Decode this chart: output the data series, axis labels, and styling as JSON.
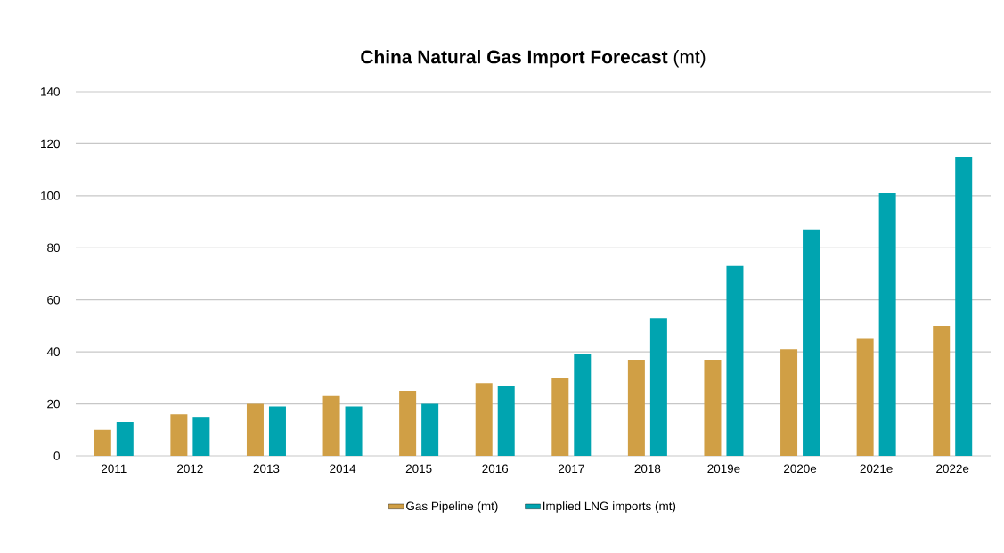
{
  "chart_data": {
    "type": "bar",
    "title": "**China Natural Gas Import Forecast** (mt)",
    "categories": [
      "2011",
      "2012",
      "2013",
      "2014",
      "2015",
      "2016",
      "2017",
      "2018",
      "2019e",
      "2020e",
      "2021e",
      "2022e"
    ],
    "series": [
      {
        "name": "Gas Pipeline (mt)",
        "color": "#d09f45",
        "values": [
          10,
          16,
          20,
          23,
          25,
          28,
          30,
          37,
          37,
          41,
          45,
          50
        ]
      },
      {
        "name": "Implied LNG imports (mt)",
        "color": "#00a4b0",
        "values": [
          13,
          15,
          19,
          19,
          20,
          27,
          39,
          53,
          73,
          87,
          101,
          115
        ]
      }
    ],
    "ylim": [
      0,
      140
    ],
    "yticks": [
      0,
      20,
      40,
      60,
      80,
      100,
      120,
      140
    ],
    "grid": "y",
    "legend": "bottom"
  }
}
